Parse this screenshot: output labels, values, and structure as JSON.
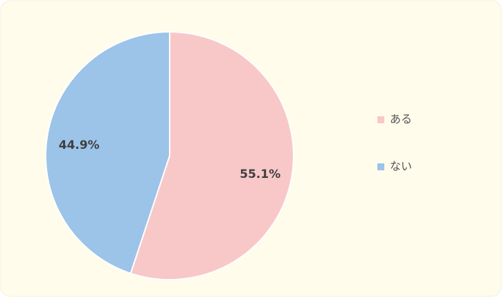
{
  "chart_data": {
    "type": "pie",
    "categories": [
      "ある",
      "ない"
    ],
    "values": [
      55.1,
      44.9
    ],
    "value_labels": [
      "55.1%",
      "44.9%"
    ],
    "colors": [
      "#f8c8c8",
      "#9cc3e8"
    ],
    "legend": "right"
  }
}
